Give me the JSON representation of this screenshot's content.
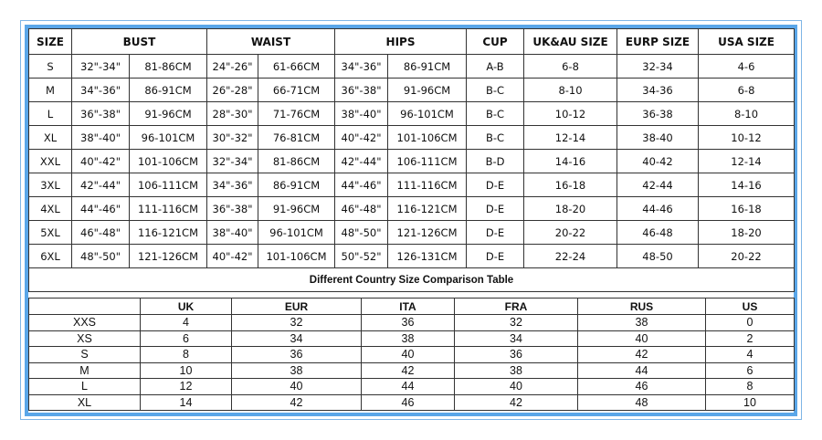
{
  "size_table": {
    "headers": [
      "SIZE",
      "BUST",
      "WAIST",
      "HIPS",
      "CUP",
      "UK&AU SIZE",
      "EURP SIZE",
      "USA SIZE"
    ],
    "rows": [
      [
        "S",
        "32\"-34\"",
        "81-86CM",
        "24\"-26\"",
        "61-66CM",
        "34\"-36\"",
        "86-91CM",
        "A-B",
        "6-8",
        "32-34",
        "4-6"
      ],
      [
        "M",
        "34\"-36\"",
        "86-91CM",
        "26\"-28\"",
        "66-71CM",
        "36\"-38\"",
        "91-96CM",
        "B-C",
        "8-10",
        "34-36",
        "6-8"
      ],
      [
        "L",
        "36\"-38\"",
        "91-96CM",
        "28\"-30\"",
        "71-76CM",
        "38\"-40\"",
        "96-101CM",
        "B-C",
        "10-12",
        "36-38",
        "8-10"
      ],
      [
        "XL",
        "38\"-40\"",
        "96-101CM",
        "30\"-32\"",
        "76-81CM",
        "40\"-42\"",
        "101-106CM",
        "B-C",
        "12-14",
        "38-40",
        "10-12"
      ],
      [
        "XXL",
        "40\"-42\"",
        "101-106CM",
        "32\"-34\"",
        "81-86CM",
        "42\"-44\"",
        "106-111CM",
        "B-D",
        "14-16",
        "40-42",
        "12-14"
      ],
      [
        "3XL",
        "42\"-44\"",
        "106-111CM",
        "34\"-36\"",
        "86-91CM",
        "44\"-46\"",
        "111-116CM",
        "D-E",
        "16-18",
        "42-44",
        "14-16"
      ],
      [
        "4XL",
        "44\"-46\"",
        "111-116CM",
        "36\"-38\"",
        "91-96CM",
        "46\"-48\"",
        "116-121CM",
        "D-E",
        "18-20",
        "44-46",
        "16-18"
      ],
      [
        "5XL",
        "46\"-48\"",
        "116-121CM",
        "38\"-40\"",
        "96-101CM",
        "48\"-50\"",
        "121-126CM",
        "D-E",
        "20-22",
        "46-48",
        "18-20"
      ],
      [
        "6XL",
        "48\"-50\"",
        "121-126CM",
        "40\"-42\"",
        "101-106CM",
        "50\"-52\"",
        "126-131CM",
        "D-E",
        "22-24",
        "48-50",
        "20-22"
      ]
    ]
  },
  "comparison_title": "Different Country Size Comparison Table",
  "comparison_table": {
    "headers": [
      "",
      "UK",
      "EUR",
      "ITA",
      "FRA",
      "RUS",
      "US"
    ],
    "rows": [
      [
        "XXS",
        "4",
        "32",
        "36",
        "32",
        "38",
        "0"
      ],
      [
        "XS",
        "6",
        "34",
        "38",
        "34",
        "40",
        "2"
      ],
      [
        "S",
        "8",
        "36",
        "40",
        "36",
        "42",
        "4"
      ],
      [
        "M",
        "10",
        "38",
        "42",
        "38",
        "44",
        "6"
      ],
      [
        "L",
        "12",
        "40",
        "44",
        "40",
        "46",
        "8"
      ],
      [
        "XL",
        "14",
        "42",
        "46",
        "42",
        "48",
        "10"
      ]
    ]
  },
  "colors": {
    "frame": "#5aa6e8",
    "border": "#333333"
  }
}
